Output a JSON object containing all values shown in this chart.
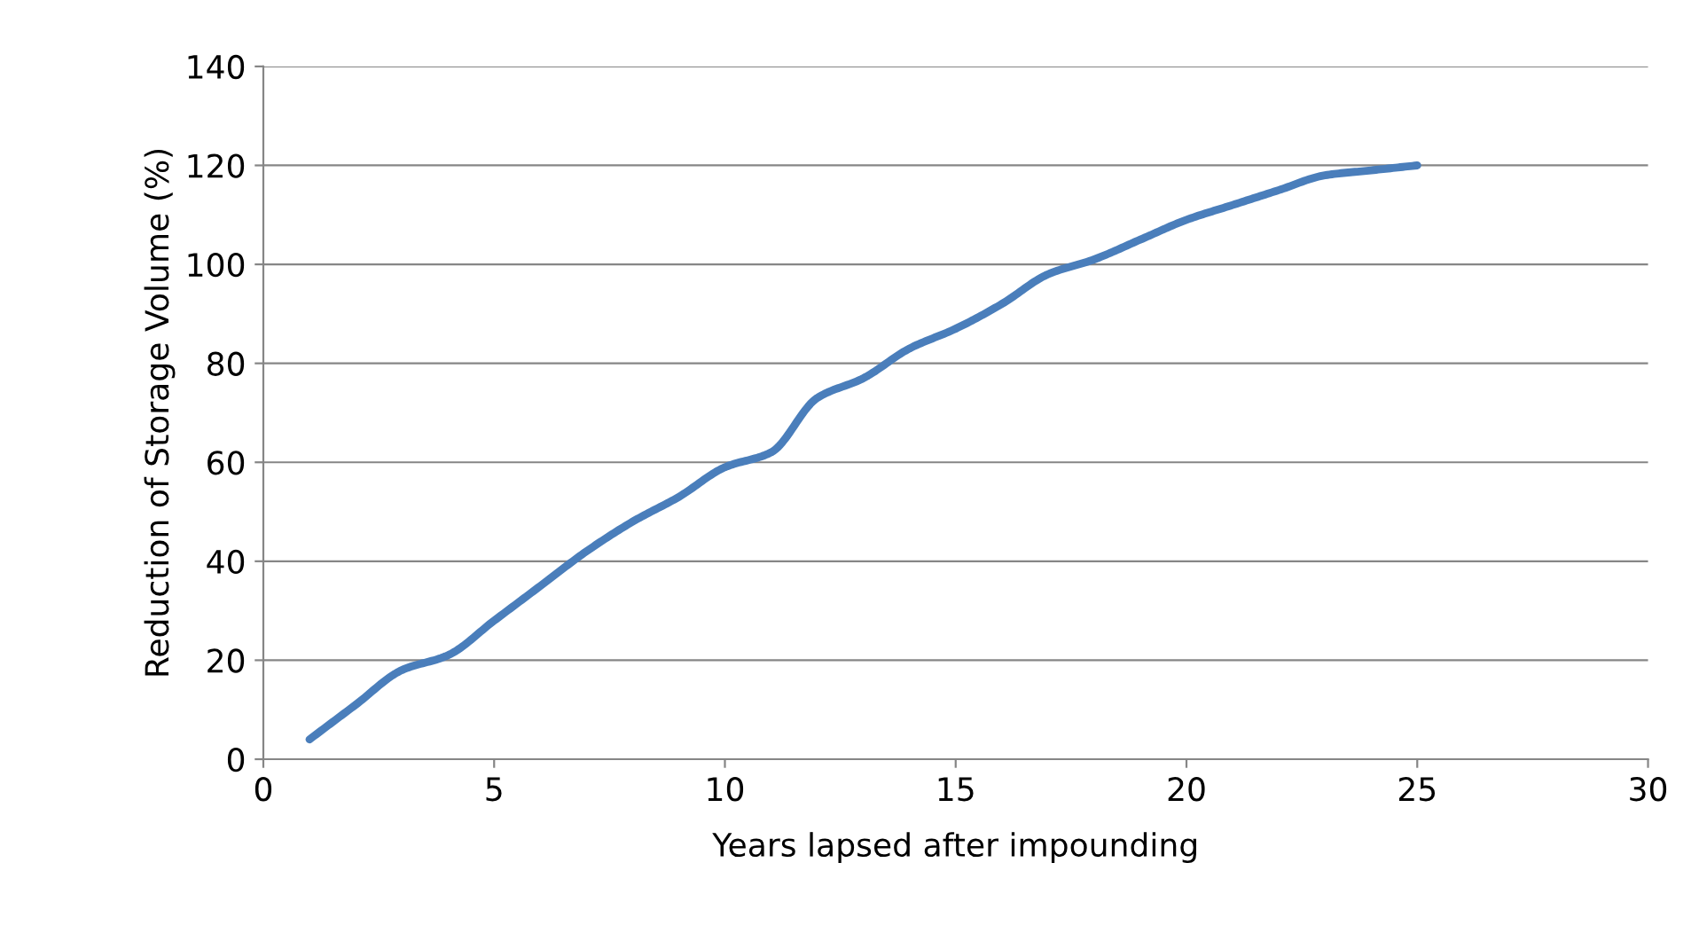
{
  "chart_data": {
    "type": "line",
    "xlabel": "Years lapsed after impounding",
    "ylabel": "Reduction of Storage Volume (%)",
    "x": [
      1,
      2,
      3,
      4,
      5,
      6,
      7,
      8,
      9,
      10,
      11,
      12,
      13,
      14,
      15,
      16,
      17,
      18,
      19,
      20,
      21,
      22,
      23,
      24,
      25
    ],
    "series": [
      {
        "color": "#4a7ebb",
        "values": [
          4,
          11,
          18,
          21,
          28,
          35,
          42,
          48,
          53,
          59,
          62,
          73,
          77,
          83,
          87,
          92,
          98,
          101,
          105,
          109,
          112,
          115,
          118,
          119,
          120
        ]
      }
    ],
    "xlim": [
      0,
      30
    ],
    "xticks": [
      0,
      5,
      10,
      15,
      20,
      25,
      30
    ],
    "ylim": [
      0,
      140
    ],
    "yticks": [
      0,
      20,
      40,
      60,
      80,
      100,
      120,
      140
    ],
    "grid": "y",
    "legend": false,
    "marker": "none",
    "line_style": "solid"
  }
}
